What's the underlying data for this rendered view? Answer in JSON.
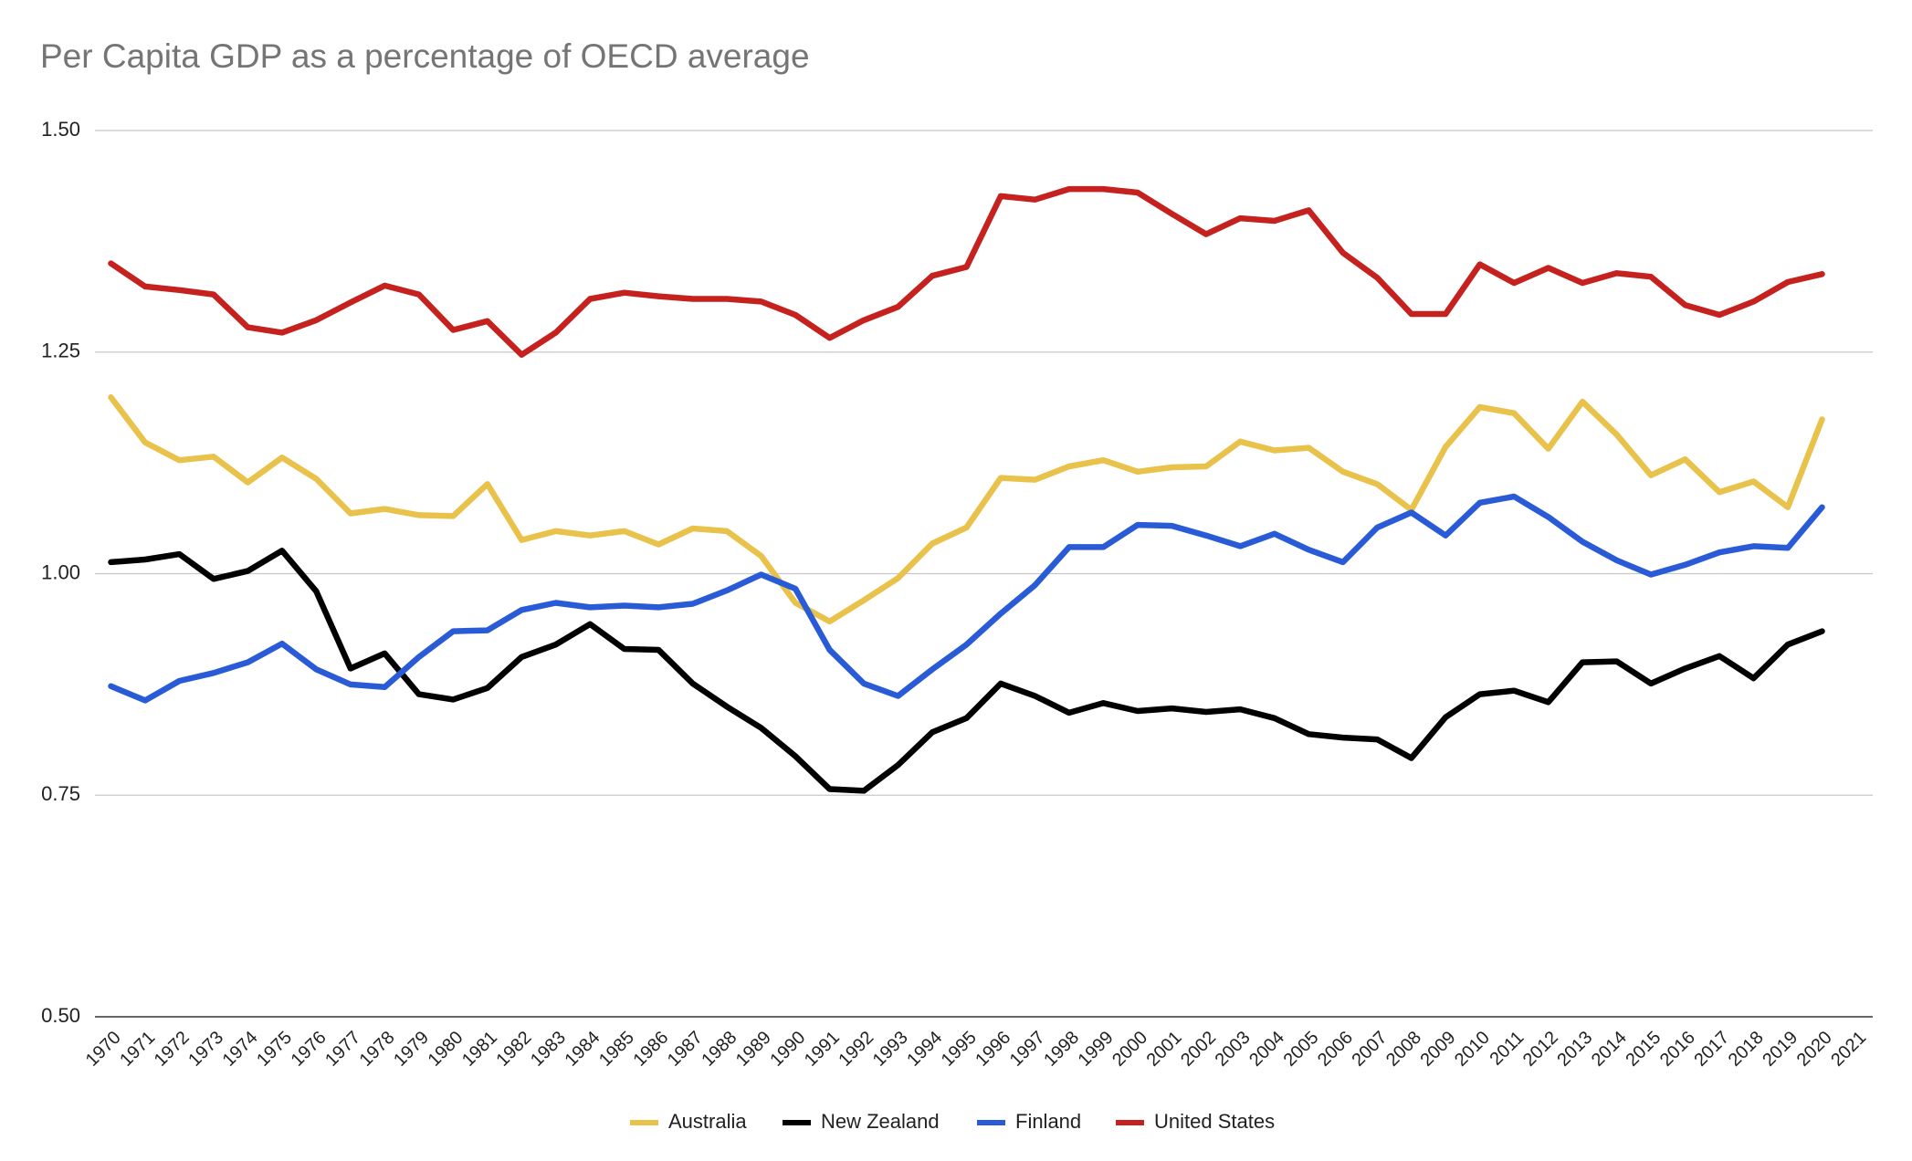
{
  "chart_data": {
    "type": "line",
    "title": "Per Capita GDP as a percentage of OECD average",
    "categories": [
      "1970",
      "1971",
      "1972",
      "1973",
      "1974",
      "1975",
      "1976",
      "1977",
      "1978",
      "1979",
      "1980",
      "1981",
      "1982",
      "1983",
      "1984",
      "1985",
      "1986",
      "1987",
      "1988",
      "1989",
      "1990",
      "1991",
      "1992",
      "1993",
      "1994",
      "1995",
      "1996",
      "1997",
      "1998",
      "1999",
      "2000",
      "2001",
      "2002",
      "2003",
      "2004",
      "2005",
      "2006",
      "2007",
      "2008",
      "2009",
      "2010",
      "2011",
      "2012",
      "2013",
      "2014",
      "2015",
      "2016",
      "2017",
      "2018",
      "2019",
      "2020",
      "2021"
    ],
    "series": [
      {
        "name": "Australia",
        "color": "#e8c24a",
        "values": [
          1.199,
          1.148,
          1.128,
          1.132,
          1.103,
          1.131,
          1.107,
          1.068,
          1.073,
          1.066,
          1.065,
          1.101,
          1.038,
          1.048,
          1.043,
          1.048,
          1.033,
          1.051,
          1.048,
          1.02,
          0.967,
          0.946,
          0.97,
          0.995,
          1.034,
          1.052,
          1.108,
          1.106,
          1.121,
          1.128,
          1.115,
          1.12,
          1.121,
          1.149,
          1.139,
          1.142,
          1.115,
          1.101,
          1.072,
          1.143,
          1.188,
          1.181,
          1.141,
          1.194,
          1.157,
          1.111,
          1.129,
          1.092,
          1.104,
          1.075,
          1.174,
          null
        ]
      },
      {
        "name": "New Zealand",
        "color": "#000000",
        "values": [
          1.013,
          1.016,
          1.022,
          0.994,
          1.003,
          1.026,
          0.98,
          0.893,
          0.91,
          0.864,
          0.858,
          0.871,
          0.906,
          0.92,
          0.943,
          0.915,
          0.914,
          0.876,
          0.85,
          0.826,
          0.794,
          0.757,
          0.755,
          0.784,
          0.821,
          0.837,
          0.876,
          0.862,
          0.843,
          0.854,
          0.845,
          0.848,
          0.844,
          0.847,
          0.837,
          0.819,
          0.815,
          0.813,
          0.792,
          0.838,
          0.864,
          0.868,
          0.855,
          0.9,
          0.901,
          0.876,
          0.893,
          0.907,
          0.882,
          0.92,
          0.935,
          null
        ]
      },
      {
        "name": "Finland",
        "color": "#2a5bd7",
        "values": [
          0.873,
          0.857,
          0.879,
          0.888,
          0.9,
          0.921,
          0.892,
          0.875,
          0.872,
          0.906,
          0.935,
          0.936,
          0.959,
          0.967,
          0.962,
          0.964,
          0.962,
          0.966,
          0.981,
          0.999,
          0.983,
          0.914,
          0.876,
          0.862,
          0.892,
          0.92,
          0.955,
          0.987,
          1.03,
          1.03,
          1.055,
          1.054,
          1.043,
          1.031,
          1.045,
          1.027,
          1.013,
          1.052,
          1.069,
          1.043,
          1.08,
          1.087,
          1.064,
          1.036,
          1.015,
          0.999,
          1.01,
          1.024,
          1.031,
          1.029,
          1.075,
          null
        ]
      },
      {
        "name": "United States",
        "color": "#c5221f",
        "values": [
          1.35,
          1.324,
          1.32,
          1.315,
          1.278,
          1.272,
          1.286,
          1.306,
          1.325,
          1.315,
          1.275,
          1.285,
          1.247,
          1.272,
          1.31,
          1.317,
          1.313,
          1.31,
          1.31,
          1.307,
          1.292,
          1.266,
          1.286,
          1.301,
          1.336,
          1.346,
          1.426,
          1.422,
          1.434,
          1.434,
          1.43,
          1.406,
          1.383,
          1.401,
          1.398,
          1.41,
          1.362,
          1.334,
          1.293,
          1.293,
          1.349,
          1.328,
          1.345,
          1.328,
          1.339,
          1.335,
          1.303,
          1.292,
          1.307,
          1.329,
          1.338,
          null
        ]
      }
    ],
    "ylim": [
      0.5,
      1.5
    ],
    "yticks": [
      {
        "value": 0.5,
        "label": "0.50"
      },
      0.75,
      {
        "value": 1.0,
        "label": "1.00"
      },
      1.25,
      {
        "value": 1.5,
        "label": "1.50"
      }
    ],
    "grid": true,
    "legend": "bottom"
  }
}
